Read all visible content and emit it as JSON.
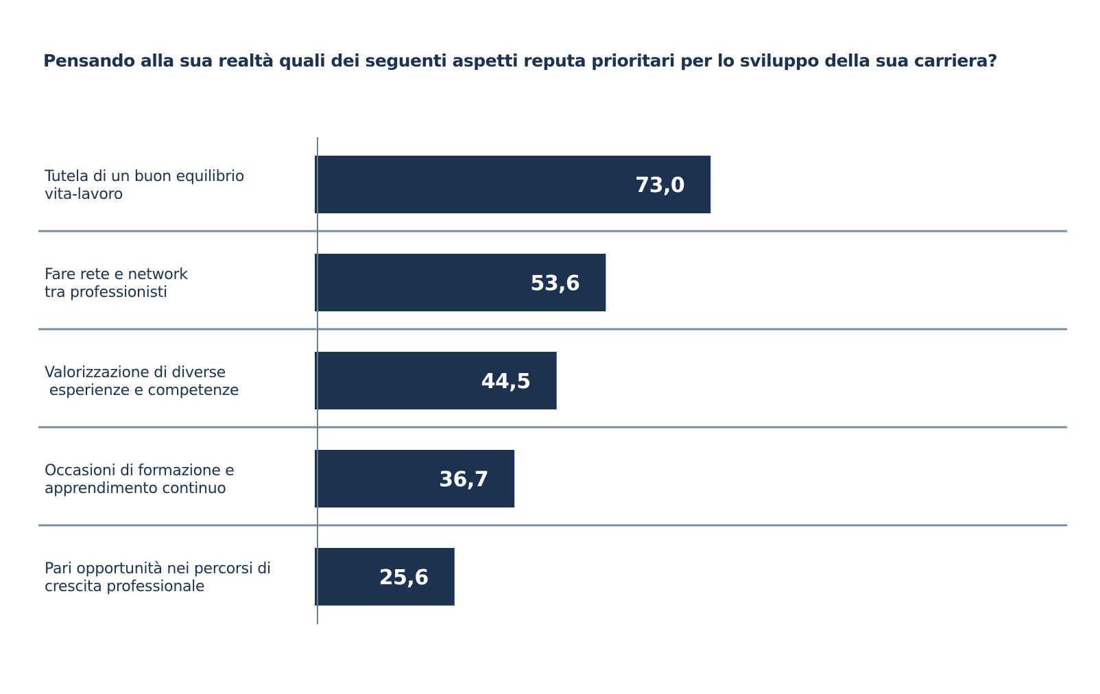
{
  "chart_data": {
    "type": "bar",
    "orientation": "horizontal",
    "title": "Pensando alla sua realtà quali dei seguenti aspetti reputa prioritari per lo sviluppo della sua carriera?",
    "categories": [
      [
        "Tutela di un buon equilibrio",
        "vita-lavoro"
      ],
      [
        "Fare rete e network",
        "tra professionisti"
      ],
      [
        "Valorizzazione di diverse",
        " esperienze e competenze"
      ],
      [
        "Occasioni di formazione e",
        "apprendimento continuo"
      ],
      [
        "Pari opportunità nei percorsi di",
        "crescita professionale"
      ]
    ],
    "values": [
      73.0,
      53.6,
      44.5,
      36.7,
      25.6
    ],
    "value_labels": [
      "73,0",
      "53,6",
      "44,5",
      "36,7",
      "25,6"
    ],
    "xlim": [
      0,
      100
    ],
    "grid": false,
    "colors": {
      "bar": "#1b3350",
      "separator": "#7b8f9c",
      "axis": "#6b7f8c",
      "text": "#1b3350"
    }
  }
}
